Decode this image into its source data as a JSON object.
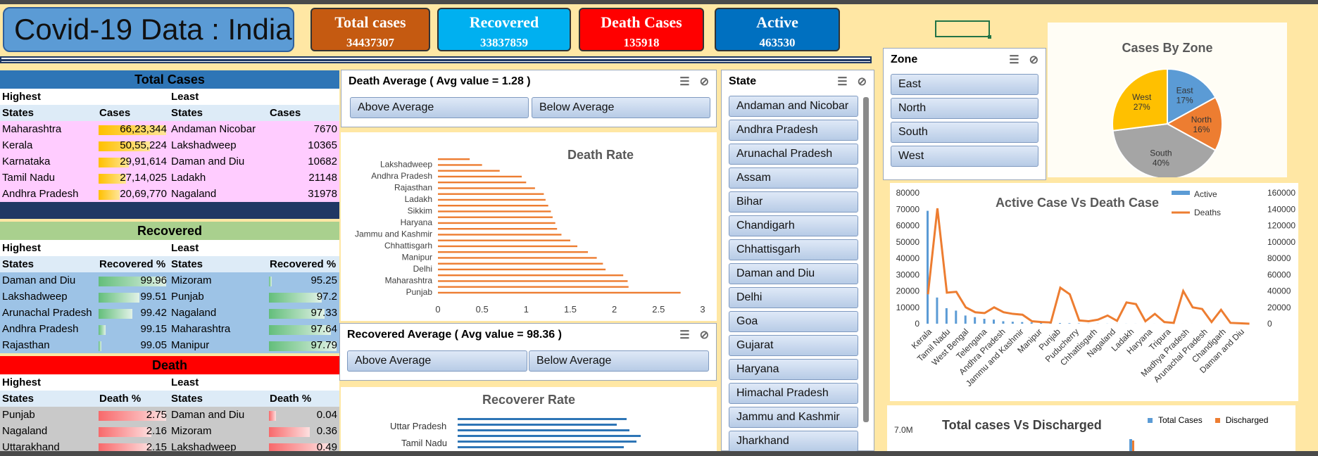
{
  "title": "Covid-19 Data : India",
  "kpis": [
    {
      "label": "Total cases",
      "value": "34437307",
      "color": "#c55a11"
    },
    {
      "label": "Recovered",
      "value": "33837859",
      "color": "#00b0f0"
    },
    {
      "label": "Death Cases",
      "value": "135918",
      "color": "#ff0000"
    },
    {
      "label": "Active",
      "value": "463530",
      "color": "#0070c0"
    }
  ],
  "total_cases": {
    "title": "Total Cases",
    "highest": "Highest",
    "least": "Least",
    "cols": [
      "States",
      "Cases",
      "States",
      "Cases"
    ],
    "rows": [
      {
        "s1": "Maharashtra",
        "v1": "66,23,344",
        "s2": "Andaman Nicobar",
        "v2": "7670",
        "f": 1.0
      },
      {
        "s1": "Kerala",
        "v1": "50,55,224",
        "s2": "Lakshadweep",
        "v2": "10365",
        "f": 0.76
      },
      {
        "s1": "Karnataka",
        "v1": "29,91,614",
        "s2": "Daman and Diu",
        "v2": "10682",
        "f": 0.45
      },
      {
        "s1": "Tamil Nadu",
        "v1": "27,14,025",
        "s2": "Ladakh",
        "v2": "21148",
        "f": 0.41
      },
      {
        "s1": "Andhra Pradesh",
        "v1": "20,69,770",
        "s2": "Nagaland",
        "v2": "31978",
        "f": 0.31
      }
    ]
  },
  "recovered": {
    "title": "Recovered",
    "highest": "Highest",
    "least": "Least",
    "cols": [
      "States",
      "Recovered %",
      "States",
      "Recovered %"
    ],
    "rows": [
      {
        "s1": "Daman and Diu",
        "v1": "99.96",
        "s2": "Mizoram",
        "v2": "95.25",
        "f1": 1.0,
        "f2": 0.0
      },
      {
        "s1": "Lakshadweep",
        "v1": "99.51",
        "s2": "Punjab",
        "v2": "97.2",
        "f1": 0.6,
        "f2": 0.78
      },
      {
        "s1": "Arunachal Pradesh",
        "v1": "99.42",
        "s2": "Nagaland",
        "v2": "97.33",
        "f1": 0.5,
        "f2": 0.82
      },
      {
        "s1": "Andhra Pradesh",
        "v1": "99.15",
        "s2": "Maharashtra",
        "v2": "97.64",
        "f1": 0.1,
        "f2": 0.92
      },
      {
        "s1": "Rajasthan",
        "v1": "99.05",
        "s2": "Manipur",
        "v2": "97.79",
        "f1": 0.0,
        "f2": 1.0
      }
    ]
  },
  "death": {
    "title": "Death",
    "highest": "Highest",
    "least": "Least",
    "cols": [
      "States",
      "Death %",
      "States",
      "Death %"
    ],
    "rows": [
      {
        "s1": "Punjab",
        "v1": "2.75",
        "s2": "Daman and Diu",
        "v2": "0.04",
        "f1": 1.0,
        "f2": 0.1
      },
      {
        "s1": "Nagaland",
        "v1": "2.16",
        "s2": "Mizoram",
        "v2": "0.36",
        "f1": 0.78,
        "f2": 0.6
      },
      {
        "s1": "Uttarakhand",
        "v1": "2.15",
        "s2": "Lakshadweep",
        "v2": "0.49",
        "f1": 0.78,
        "f2": 0.9
      }
    ]
  },
  "death_avg_slicer": {
    "title": "Death Average ( Avg value = 1.28 )",
    "buttons": [
      "Above Average",
      "Below Average"
    ]
  },
  "recovered_avg_slicer": {
    "title": "Recovered Average ( Avg value = 98.36 )",
    "buttons": [
      "Above Average",
      "Below Average"
    ]
  },
  "state_slicer": {
    "title": "State",
    "items": [
      "Andaman and Nicobar",
      "Andhra Pradesh",
      "Arunachal Pradesh",
      "Assam",
      "Bihar",
      "Chandigarh",
      "Chhattisgarh",
      "Daman and Diu",
      "Delhi",
      "Goa",
      "Gujarat",
      "Haryana",
      "Himachal Pradesh",
      "Jammu and Kashmir",
      "Jharkhand"
    ]
  },
  "zone_slicer": {
    "title": "Zone",
    "items": [
      "East",
      "North",
      "South",
      "West"
    ]
  },
  "recoverer_rate": {
    "title": "Recoverer Rate",
    "labels": [
      "Uttar Pradesh",
      "Tamil Nadu"
    ]
  },
  "discharged_chart": {
    "title": "Total cases Vs Discharged",
    "legend": [
      "Total Cases",
      "Discharged"
    ],
    "ytick": "7.0M"
  },
  "chart_data": [
    {
      "type": "bar",
      "title": "Death Rate",
      "orientation": "horizontal",
      "color": "#ed7d31",
      "categories": [
        "Punjab",
        "",
        "Maharashtra",
        "",
        "Delhi",
        "",
        "Manipur",
        "",
        "Chhattisgarh",
        "",
        "Jammu and Kashmir",
        "",
        "Haryana",
        "",
        "Sikkim",
        "",
        "Ladakh",
        "",
        "Rajasthan",
        "",
        "Andhra Pradesh",
        "",
        "Lakshadweep",
        ""
      ],
      "values": [
        2.75,
        2.16,
        2.15,
        2.1,
        1.9,
        1.87,
        1.8,
        1.7,
        1.58,
        1.5,
        1.4,
        1.35,
        1.33,
        1.3,
        1.28,
        1.25,
        1.22,
        1.2,
        1.1,
        1.0,
        0.95,
        0.7,
        0.5,
        0.36
      ],
      "xlim": [
        0,
        3
      ],
      "xticks": [
        "0",
        "0.5",
        "1",
        "1.5",
        "2",
        "2.5",
        "3"
      ]
    },
    {
      "type": "pie",
      "title": "Cases By Zone",
      "slices": [
        {
          "label": "East",
          "value": 17,
          "color": "#5b9bd5"
        },
        {
          "label": "North",
          "value": 16,
          "color": "#ed7d31"
        },
        {
          "label": "South",
          "value": 40,
          "color": "#a5a5a5"
        },
        {
          "label": "West",
          "value": 27,
          "color": "#ffc000"
        }
      ]
    },
    {
      "type": "bar",
      "title": "Active Case Vs Death Case",
      "legend": [
        "Active",
        "Deaths"
      ],
      "categories": [
        "Kerala",
        "Tamil Nadu",
        "West Bengal",
        "Telengana",
        "Andhra Pradesh",
        "Jammu and Kashmir",
        "Manipur",
        "Punjab",
        "Puducherry",
        "Chhattisgarh",
        "Nagaland",
        "Ladakh",
        "Haryana",
        "Tripura",
        "Madhya Pradesh",
        "Arunachal Pradesh",
        "Chandigarh",
        "Daman and Diu"
      ],
      "active": [
        69000,
        16000,
        9500,
        8000,
        5000,
        4000,
        3000,
        2500,
        1500,
        1200,
        1000,
        800,
        600,
        500,
        400,
        300,
        200,
        100,
        80,
        60,
        50,
        40,
        30,
        20,
        15,
        10,
        8,
        6,
        5,
        4,
        3,
        2,
        1,
        1,
        0
      ],
      "deaths": [
        36000,
        141000,
        38000,
        39000,
        20000,
        14000,
        13000,
        20000,
        14000,
        12000,
        11000,
        3000,
        2000,
        1500,
        44000,
        36000,
        4000,
        3000,
        5000,
        10000,
        3500,
        26000,
        24000,
        3000,
        12000,
        2000,
        1000,
        40000,
        20000,
        18000,
        2000,
        17000,
        1000,
        500,
        0
      ],
      "ylim_left": [
        0,
        80000
      ],
      "ylim_right": [
        0,
        160000
      ],
      "yticks_left": [
        "0",
        "10000",
        "20000",
        "30000",
        "40000",
        "50000",
        "60000",
        "70000",
        "80000"
      ],
      "yticks_right": [
        "0",
        "20000",
        "40000",
        "60000",
        "80000",
        "100000",
        "120000",
        "140000",
        "160000"
      ]
    }
  ]
}
